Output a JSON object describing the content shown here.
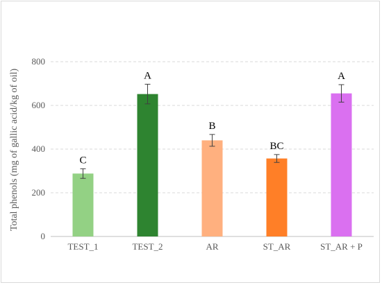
{
  "chart_data": {
    "type": "bar",
    "categories": [
      "TEST_1",
      "TEST_2",
      "AR",
      "ST_AR",
      "ST_AR + P"
    ],
    "values": [
      288,
      652,
      440,
      357,
      655
    ],
    "errors": [
      22,
      45,
      27,
      18,
      40
    ],
    "group_labels": [
      "C",
      "A",
      "B",
      "BC",
      "A"
    ],
    "colors": [
      "#93d184",
      "#2e8430",
      "#ffb07f",
      "#ff7f27",
      "#da70f0"
    ],
    "ylabel": "Total phenols (mg of gallic acid/kg of oil)",
    "xlabel": "",
    "ylim": [
      0,
      800
    ],
    "yticks": [
      0,
      200,
      400,
      600,
      800
    ],
    "grid": true
  }
}
